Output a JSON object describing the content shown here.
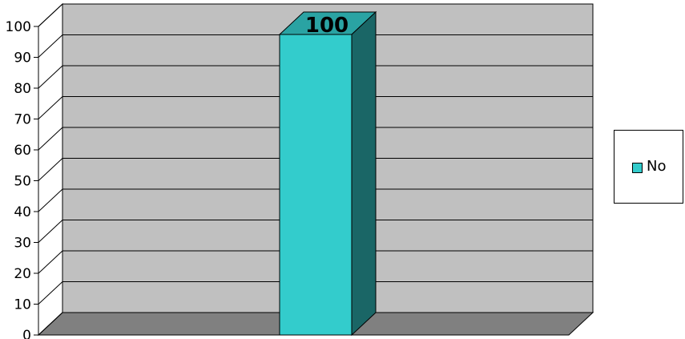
{
  "chart_data": {
    "type": "bar",
    "categories": [
      ""
    ],
    "series": [
      {
        "name": "No",
        "values": [
          100
        ]
      }
    ],
    "title": "",
    "xlabel": "",
    "ylabel": "",
    "ylim": [
      0,
      100
    ],
    "yticks": [
      0,
      10,
      20,
      30,
      40,
      50,
      60,
      70,
      80,
      90,
      100
    ],
    "data_labels": [
      "100"
    ],
    "grid": true,
    "legend": "right",
    "colors": {
      "bar_front": "#33CCCC",
      "bar_side": "#1A6666",
      "bar_top": "#2AA3A3",
      "plot_wall": "#C0C0C0",
      "plot_floor": "#808080",
      "gridline": "#000000"
    }
  },
  "legend": {
    "label": "No"
  }
}
